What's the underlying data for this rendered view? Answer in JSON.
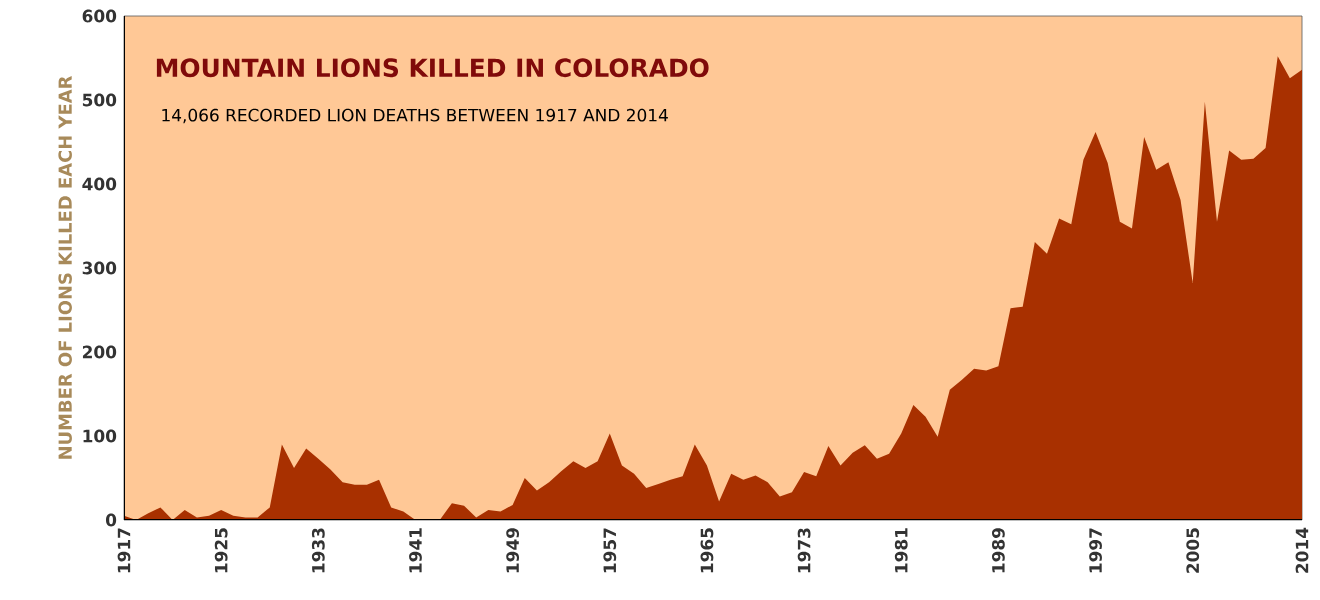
{
  "chart_data": {
    "type": "area",
    "title": "MOUNTAIN LIONS KILLED IN COLORADO",
    "subtitle": "14,066 RECORDED LION DEATHS BETWEEN 1917 AND 2014",
    "ylabel": "NUMBER OF LIONS KILLED EACH YEAR",
    "x": [
      1917,
      1918,
      1919,
      1920,
      1921,
      1922,
      1923,
      1924,
      1925,
      1926,
      1927,
      1928,
      1929,
      1930,
      1931,
      1932,
      1933,
      1934,
      1935,
      1936,
      1937,
      1938,
      1939,
      1940,
      1941,
      1942,
      1943,
      1944,
      1945,
      1946,
      1947,
      1948,
      1949,
      1950,
      1951,
      1952,
      1953,
      1954,
      1955,
      1956,
      1957,
      1958,
      1959,
      1960,
      1961,
      1962,
      1963,
      1964,
      1965,
      1966,
      1967,
      1968,
      1969,
      1970,
      1971,
      1972,
      1973,
      1974,
      1975,
      1976,
      1977,
      1978,
      1979,
      1980,
      1981,
      1982,
      1983,
      1984,
      1985,
      1986,
      1987,
      1988,
      1989,
      1990,
      1991,
      1992,
      1993,
      1994,
      1995,
      1996,
      1997,
      1998,
      1999,
      2000,
      2001,
      2002,
      2003,
      2004,
      2005,
      2006,
      2007,
      2008,
      2009,
      2010,
      2011,
      2012,
      2013,
      2014
    ],
    "values": [
      5,
      0,
      8,
      15,
      0,
      12,
      3,
      5,
      12,
      5,
      3,
      3,
      15,
      90,
      62,
      85,
      73,
      60,
      45,
      42,
      42,
      48,
      15,
      10,
      0,
      0,
      0,
      20,
      17,
      3,
      12,
      10,
      18,
      50,
      35,
      45,
      58,
      70,
      62,
      70,
      103,
      65,
      55,
      38,
      43,
      48,
      52,
      90,
      65,
      22,
      55,
      48,
      53,
      45,
      28,
      33,
      57,
      52,
      88,
      65,
      80,
      89,
      73,
      79,
      103,
      137,
      123,
      99,
      155,
      167,
      180,
      178,
      183,
      252,
      254,
      331,
      317,
      359,
      352,
      429,
      462,
      425,
      355,
      347,
      456,
      417,
      426,
      381,
      282,
      498,
      355,
      440,
      429,
      430,
      443,
      552,
      526,
      536
    ],
    "color": "#a83000",
    "xlim": [
      1917,
      2014
    ],
    "xticks": [
      1917,
      1925,
      1933,
      1941,
      1949,
      1957,
      1965,
      1973,
      1981,
      1989,
      1997,
      2005,
      2014
    ],
    "ylim": [
      0,
      600
    ],
    "yticks": [
      0,
      100,
      200,
      300,
      400,
      500,
      600
    ],
    "grid": false
  }
}
